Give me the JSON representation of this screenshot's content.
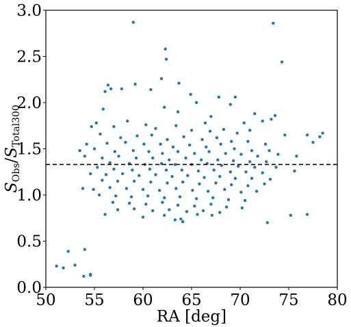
{
  "chart_data": {
    "type": "scatter",
    "xlabel": "RA [deg]",
    "ylabel_main": "S",
    "ylabel_sub1": "Obs",
    "ylabel_slash": "/",
    "ylabel_sub2": "Total300",
    "xlim": [
      50,
      80
    ],
    "ylim": [
      0.0,
      3.0
    ],
    "xticks": [
      50,
      55,
      60,
      65,
      70,
      75,
      80
    ],
    "xtick_labels": [
      "50",
      "55",
      "60",
      "65",
      "70",
      "75",
      "80"
    ],
    "yticks": [
      0.0,
      0.5,
      1.0,
      1.5,
      2.0,
      2.5,
      3.0
    ],
    "ytick_labels": [
      "0.0",
      "0.5",
      "1.0",
      "1.5",
      "2.0",
      "2.5",
      "3.0"
    ],
    "reference_line_y": 1.33,
    "reference_line_style": "dashed",
    "point_color": "#1f77b4",
    "grid": false,
    "series": [
      {
        "points": [
          [
            51.1,
            0.23
          ],
          [
            51.8,
            0.21
          ],
          [
            52.3,
            0.39
          ],
          [
            53.0,
            0.24
          ],
          [
            54.0,
            0.41
          ],
          [
            53.9,
            0.12
          ],
          [
            54.6,
            0.14
          ],
          [
            54.6,
            0.13
          ],
          [
            59.0,
            2.87
          ],
          [
            73.4,
            2.86
          ],
          [
            62.3,
            2.58
          ],
          [
            62.4,
            2.47
          ],
          [
            74.3,
            2.44
          ],
          [
            61.9,
            2.26
          ],
          [
            56.4,
            2.19
          ],
          [
            59.2,
            2.2
          ],
          [
            63.7,
            2.21
          ],
          [
            56.7,
            2.15
          ],
          [
            57.8,
            2.15
          ],
          [
            56.1,
            2.12
          ],
          [
            64.9,
            2.09
          ],
          [
            60.8,
            2.14
          ],
          [
            67.8,
            2.06
          ],
          [
            69.5,
            2.06
          ],
          [
            65.5,
            2.0
          ],
          [
            62.2,
            1.95
          ],
          [
            55.9,
            1.93
          ],
          [
            69.0,
            1.98
          ],
          [
            73.2,
            1.82
          ],
          [
            71.5,
            1.88
          ],
          [
            63.6,
            1.9
          ],
          [
            67.0,
            1.85
          ],
          [
            70.4,
            1.78
          ],
          [
            73.6,
            1.86
          ],
          [
            76.9,
            1.65
          ],
          [
            78.5,
            1.67
          ],
          [
            77.5,
            1.57
          ],
          [
            78.2,
            1.63
          ],
          [
            74.6,
            1.65
          ],
          [
            72.3,
            1.8
          ],
          [
            71.0,
            1.7
          ],
          [
            66.4,
            1.78
          ],
          [
            58.4,
            1.8
          ],
          [
            60.3,
            1.76
          ],
          [
            55.2,
            1.78
          ],
          [
            54.7,
            1.74
          ],
          [
            57.0,
            1.74
          ],
          [
            61.3,
            1.72
          ],
          [
            63.4,
            1.75
          ],
          [
            65.0,
            1.7
          ],
          [
            66.9,
            1.69
          ],
          [
            68.3,
            1.71
          ],
          [
            69.7,
            1.67
          ],
          [
            55.6,
            1.66
          ],
          [
            57.7,
            1.62
          ],
          [
            59.4,
            1.64
          ],
          [
            60.9,
            1.65
          ],
          [
            62.5,
            1.6
          ],
          [
            64.2,
            1.63
          ],
          [
            66.1,
            1.6
          ],
          [
            67.6,
            1.62
          ],
          [
            69.1,
            1.58
          ],
          [
            70.8,
            1.58
          ],
          [
            72.6,
            1.55
          ],
          [
            54.2,
            1.55
          ],
          [
            56.3,
            1.56
          ],
          [
            58.2,
            1.57
          ],
          [
            60.1,
            1.55
          ],
          [
            61.8,
            1.55
          ],
          [
            63.1,
            1.52
          ],
          [
            64.8,
            1.54
          ],
          [
            66.5,
            1.52
          ],
          [
            68.0,
            1.55
          ],
          [
            69.4,
            1.5
          ],
          [
            71.2,
            1.48
          ],
          [
            73.0,
            1.48
          ],
          [
            53.5,
            1.48
          ],
          [
            55.0,
            1.5
          ],
          [
            57.1,
            1.47
          ],
          [
            59.0,
            1.48
          ],
          [
            60.6,
            1.47
          ],
          [
            62.0,
            1.45
          ],
          [
            63.6,
            1.47
          ],
          [
            65.3,
            1.45
          ],
          [
            66.8,
            1.47
          ],
          [
            68.5,
            1.45
          ],
          [
            70.1,
            1.44
          ],
          [
            71.8,
            1.42
          ],
          [
            73.9,
            1.44
          ],
          [
            75.8,
            1.42
          ],
          [
            54.0,
            1.42
          ],
          [
            55.8,
            1.4
          ],
          [
            57.5,
            1.42
          ],
          [
            59.3,
            1.4
          ],
          [
            61.0,
            1.4
          ],
          [
            62.7,
            1.38
          ],
          [
            64.4,
            1.4
          ],
          [
            66.0,
            1.38
          ],
          [
            67.7,
            1.38
          ],
          [
            69.3,
            1.37
          ],
          [
            71.0,
            1.36
          ],
          [
            72.7,
            1.36
          ],
          [
            56.6,
            1.35
          ],
          [
            58.6,
            1.34
          ],
          [
            60.2,
            1.33
          ],
          [
            61.9,
            1.34
          ],
          [
            63.3,
            1.33
          ],
          [
            65.0,
            1.33
          ],
          [
            66.6,
            1.34
          ],
          [
            68.1,
            1.32
          ],
          [
            69.8,
            1.31
          ],
          [
            71.5,
            1.3
          ],
          [
            73.7,
            1.3
          ],
          [
            55.3,
            1.3
          ],
          [
            57.0,
            1.28
          ],
          [
            58.9,
            1.27
          ],
          [
            60.7,
            1.28
          ],
          [
            62.4,
            1.27
          ],
          [
            64.0,
            1.27
          ],
          [
            65.7,
            1.26
          ],
          [
            67.3,
            1.27
          ],
          [
            69.0,
            1.25
          ],
          [
            70.6,
            1.25
          ],
          [
            72.3,
            1.24
          ],
          [
            75.6,
            1.26
          ],
          [
            54.6,
            1.23
          ],
          [
            56.2,
            1.22
          ],
          [
            57.9,
            1.23
          ],
          [
            59.6,
            1.21
          ],
          [
            61.3,
            1.22
          ],
          [
            63.0,
            1.2
          ],
          [
            64.6,
            1.21
          ],
          [
            66.3,
            1.19
          ],
          [
            67.9,
            1.2
          ],
          [
            69.5,
            1.18
          ],
          [
            71.2,
            1.18
          ],
          [
            73.1,
            1.17
          ],
          [
            55.8,
            1.16
          ],
          [
            57.4,
            1.15
          ],
          [
            59.1,
            1.15
          ],
          [
            60.8,
            1.14
          ],
          [
            62.5,
            1.13
          ],
          [
            64.1,
            1.14
          ],
          [
            65.8,
            1.12
          ],
          [
            67.5,
            1.13
          ],
          [
            69.1,
            1.11
          ],
          [
            70.8,
            1.1
          ],
          [
            72.5,
            1.12
          ],
          [
            53.8,
            1.07
          ],
          [
            54.9,
            1.06
          ],
          [
            56.6,
            1.08
          ],
          [
            58.3,
            1.07
          ],
          [
            60.0,
            1.06
          ],
          [
            61.7,
            1.05
          ],
          [
            63.4,
            1.07
          ],
          [
            65.1,
            1.05
          ],
          [
            66.7,
            1.04
          ],
          [
            68.4,
            1.06
          ],
          [
            70.1,
            1.03
          ],
          [
            71.7,
            1.04
          ],
          [
            55.5,
            1.0
          ],
          [
            57.2,
            0.99
          ],
          [
            58.8,
            0.98
          ],
          [
            60.5,
            0.99
          ],
          [
            62.2,
            0.97
          ],
          [
            63.8,
            0.98
          ],
          [
            65.5,
            0.96
          ],
          [
            67.2,
            0.97
          ],
          [
            68.8,
            0.95
          ],
          [
            70.5,
            0.94
          ],
          [
            56.9,
            0.92
          ],
          [
            58.6,
            0.91
          ],
          [
            60.3,
            0.9
          ],
          [
            62.0,
            0.92
          ],
          [
            63.6,
            0.89
          ],
          [
            65.3,
            0.88
          ],
          [
            67.0,
            0.9
          ],
          [
            68.6,
            0.87
          ],
          [
            70.2,
            0.86
          ],
          [
            57.4,
            0.84
          ],
          [
            59.1,
            0.85
          ],
          [
            61.0,
            0.83
          ],
          [
            62.7,
            0.84
          ],
          [
            64.5,
            0.82
          ],
          [
            66.2,
            0.83
          ],
          [
            67.9,
            0.81
          ],
          [
            56.1,
            0.79
          ],
          [
            60.0,
            0.76
          ],
          [
            62.2,
            0.78
          ],
          [
            63.9,
            0.74
          ],
          [
            64.1,
            0.71
          ],
          [
            63.3,
            0.73
          ],
          [
            65.6,
            0.79
          ],
          [
            67.1,
            0.78
          ],
          [
            72.8,
            0.7
          ],
          [
            75.2,
            0.78
          ],
          [
            76.9,
            0.79
          ]
        ]
      }
    ]
  }
}
